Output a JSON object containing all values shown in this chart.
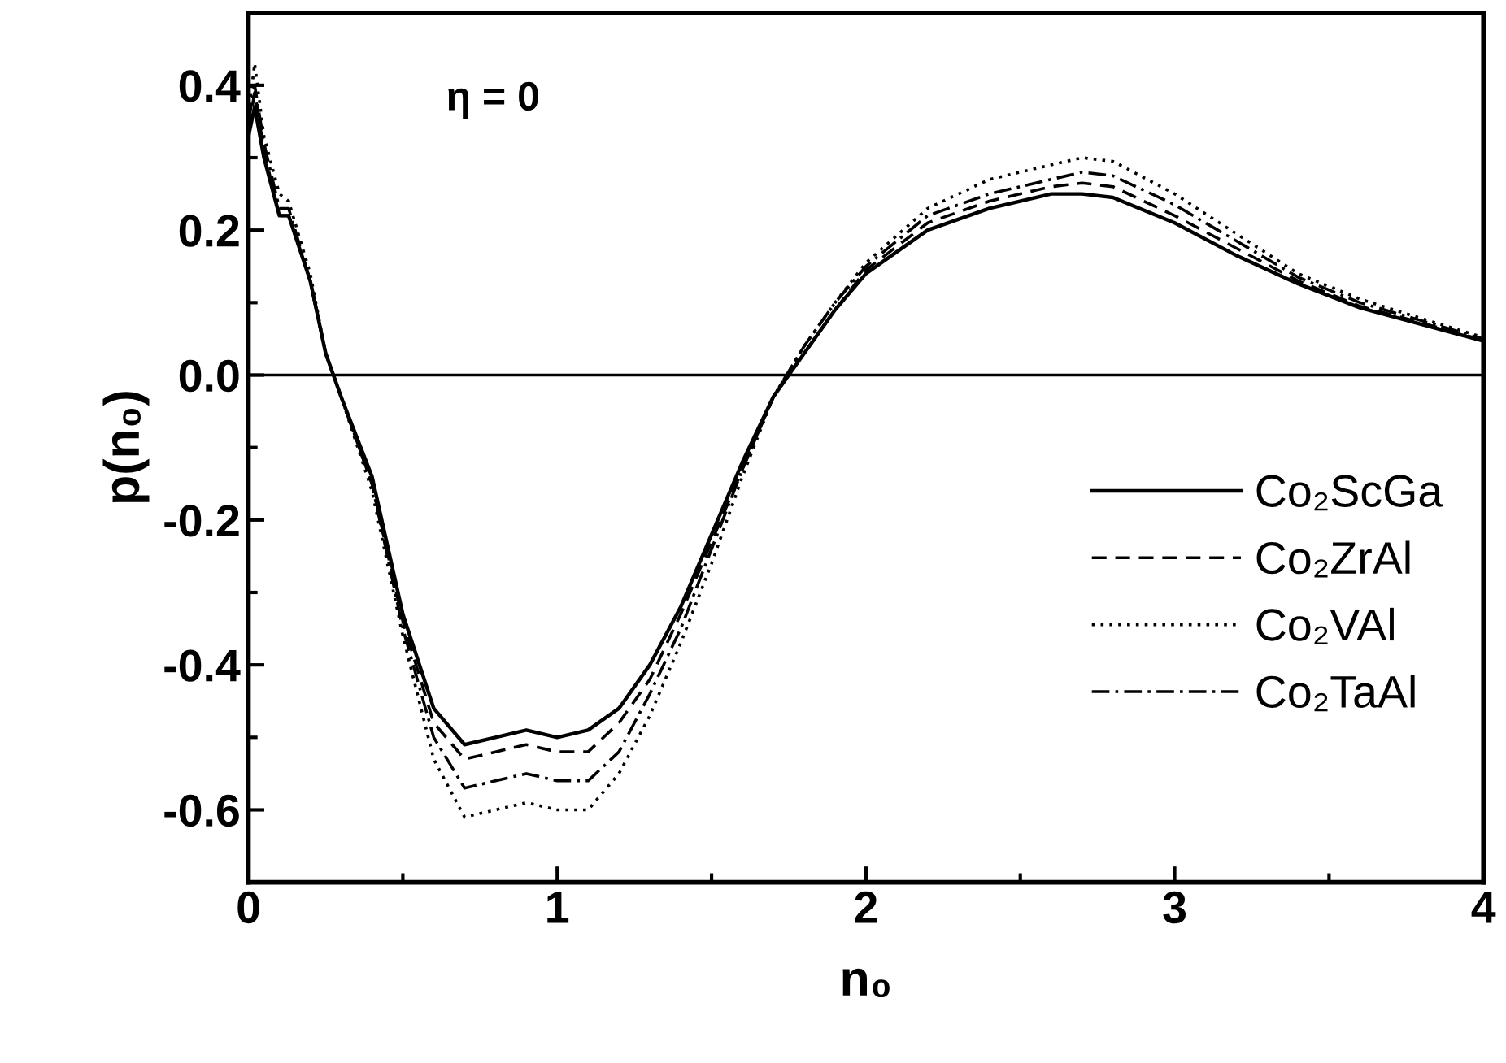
{
  "chart_data": {
    "type": "line",
    "xlabel": "n₀",
    "ylabel": "p(n₀)",
    "annotations": [
      "η = 0"
    ],
    "x": [
      0,
      0.02,
      0.05,
      0.1,
      0.13,
      0.2,
      0.25,
      0.3,
      0.4,
      0.5,
      0.6,
      0.7,
      0.8,
      0.9,
      1.0,
      1.1,
      1.2,
      1.3,
      1.4,
      1.5,
      1.6,
      1.7,
      1.8,
      1.9,
      2.0,
      2.2,
      2.4,
      2.6,
      2.7,
      2.8,
      3.0,
      3.2,
      3.4,
      3.6,
      3.8,
      4.0
    ],
    "series": [
      {
        "name": "Co₂ScGa",
        "color": "#000000",
        "line_style": "solid",
        "values": [
          0.33,
          0.37,
          0.3,
          0.22,
          0.22,
          0.13,
          0.03,
          -0.03,
          -0.14,
          -0.33,
          -0.46,
          -0.51,
          -0.5,
          -0.49,
          -0.5,
          -0.49,
          -0.46,
          -0.4,
          -0.32,
          -0.22,
          -0.12,
          -0.03,
          0.03,
          0.09,
          0.14,
          0.2,
          0.23,
          0.25,
          0.25,
          0.245,
          0.21,
          0.165,
          0.126,
          0.093,
          0.07,
          0.047
        ]
      },
      {
        "name": "Co₂ZrAl",
        "color": "#000000",
        "line_style": "dashed",
        "values": [
          0.34,
          0.39,
          0.31,
          0.22,
          0.22,
          0.13,
          0.03,
          -0.03,
          -0.15,
          -0.34,
          -0.48,
          -0.53,
          -0.52,
          -0.51,
          -0.52,
          -0.52,
          -0.48,
          -0.42,
          -0.33,
          -0.23,
          -0.13,
          -0.03,
          0.03,
          0.09,
          0.145,
          0.21,
          0.24,
          0.26,
          0.265,
          0.26,
          0.22,
          0.175,
          0.13,
          0.095,
          0.072,
          0.048
        ]
      },
      {
        "name": "Co₂VAl",
        "color": "#000000",
        "line_style": "dotted",
        "values": [
          0.36,
          0.43,
          0.33,
          0.25,
          0.24,
          0.14,
          0.03,
          -0.03,
          -0.16,
          -0.36,
          -0.53,
          -0.61,
          -0.6,
          -0.59,
          -0.6,
          -0.6,
          -0.55,
          -0.47,
          -0.37,
          -0.26,
          -0.14,
          -0.03,
          0.04,
          0.1,
          0.155,
          0.23,
          0.27,
          0.29,
          0.3,
          0.295,
          0.25,
          0.195,
          0.14,
          0.105,
          0.078,
          0.052
        ]
      },
      {
        "name": "Co₂TaAl",
        "color": "#000000",
        "line_style": "dashdot",
        "values": [
          0.35,
          0.4,
          0.32,
          0.23,
          0.23,
          0.13,
          0.03,
          -0.03,
          -0.15,
          -0.35,
          -0.5,
          -0.57,
          -0.56,
          -0.55,
          -0.56,
          -0.56,
          -0.52,
          -0.44,
          -0.35,
          -0.24,
          -0.13,
          -0.03,
          0.04,
          0.1,
          0.15,
          0.22,
          0.25,
          0.27,
          0.28,
          0.275,
          0.235,
          0.185,
          0.135,
          0.1,
          0.075,
          0.05
        ]
      }
    ],
    "ref_lines": [
      {
        "axis": "y",
        "value": 0,
        "color": "#000000"
      }
    ],
    "xlim": [
      0,
      4
    ],
    "xticks": [
      0,
      1,
      2,
      3,
      4
    ],
    "ylim": [
      -0.7,
      0.5
    ],
    "yticks": [
      {
        "value": -0.6,
        "label": "-0.6"
      },
      {
        "value": -0.4,
        "label": "-0.4"
      },
      {
        "value": -0.2,
        "label": "-0.2"
      },
      {
        "value": 0,
        "label": "0.0"
      },
      {
        "value": 0.2,
        "label": "0.2"
      },
      {
        "value": 0.4,
        "label": "0.4"
      }
    ],
    "grid": false,
    "legend": "right",
    "marker": "none"
  }
}
